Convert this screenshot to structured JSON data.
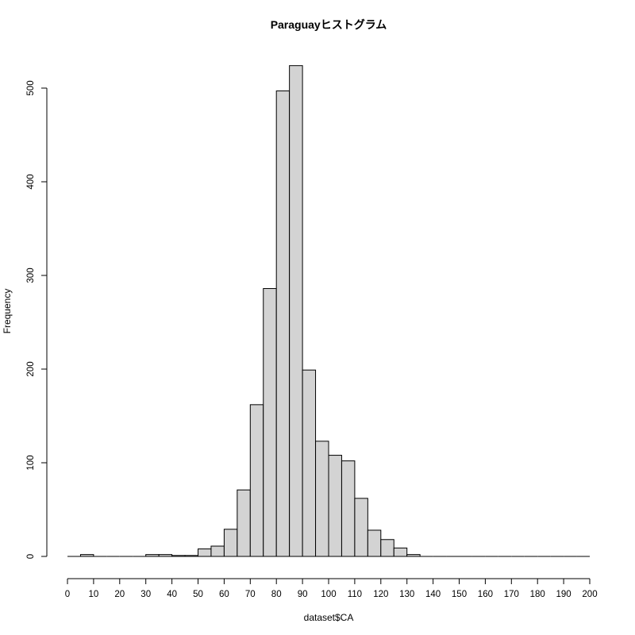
{
  "chart_data": {
    "type": "bar",
    "title": "Paraguayヒストグラム",
    "xlabel": "dataset$CA",
    "ylabel": "Frequency",
    "xlim": [
      0,
      200
    ],
    "ylim": [
      0,
      525
    ],
    "bin_width": 5,
    "x_ticks": [
      0,
      10,
      20,
      30,
      40,
      50,
      60,
      70,
      80,
      90,
      100,
      110,
      120,
      130,
      140,
      150,
      160,
      170,
      180,
      190,
      200
    ],
    "y_ticks": [
      0,
      100,
      200,
      300,
      400,
      500
    ],
    "bin_starts": [
      0,
      5,
      10,
      15,
      20,
      25,
      30,
      35,
      40,
      45,
      50,
      55,
      60,
      65,
      70,
      75,
      80,
      85,
      90,
      95,
      100,
      105,
      110,
      115,
      120,
      125,
      130,
      135,
      140,
      145,
      150,
      155,
      160,
      165,
      170,
      175,
      180,
      185,
      190,
      195
    ],
    "values": [
      0,
      2,
      0,
      0,
      0,
      0,
      2,
      2,
      1,
      1,
      8,
      11,
      29,
      71,
      162,
      286,
      497,
      524,
      199,
      123,
      108,
      102,
      62,
      28,
      18,
      9,
      2,
      0,
      0,
      0,
      0,
      0,
      0,
      0,
      0,
      0,
      0,
      0,
      0,
      0
    ],
    "bar_fill": "#d3d3d3",
    "bar_stroke": "#000000",
    "grid": false
  }
}
